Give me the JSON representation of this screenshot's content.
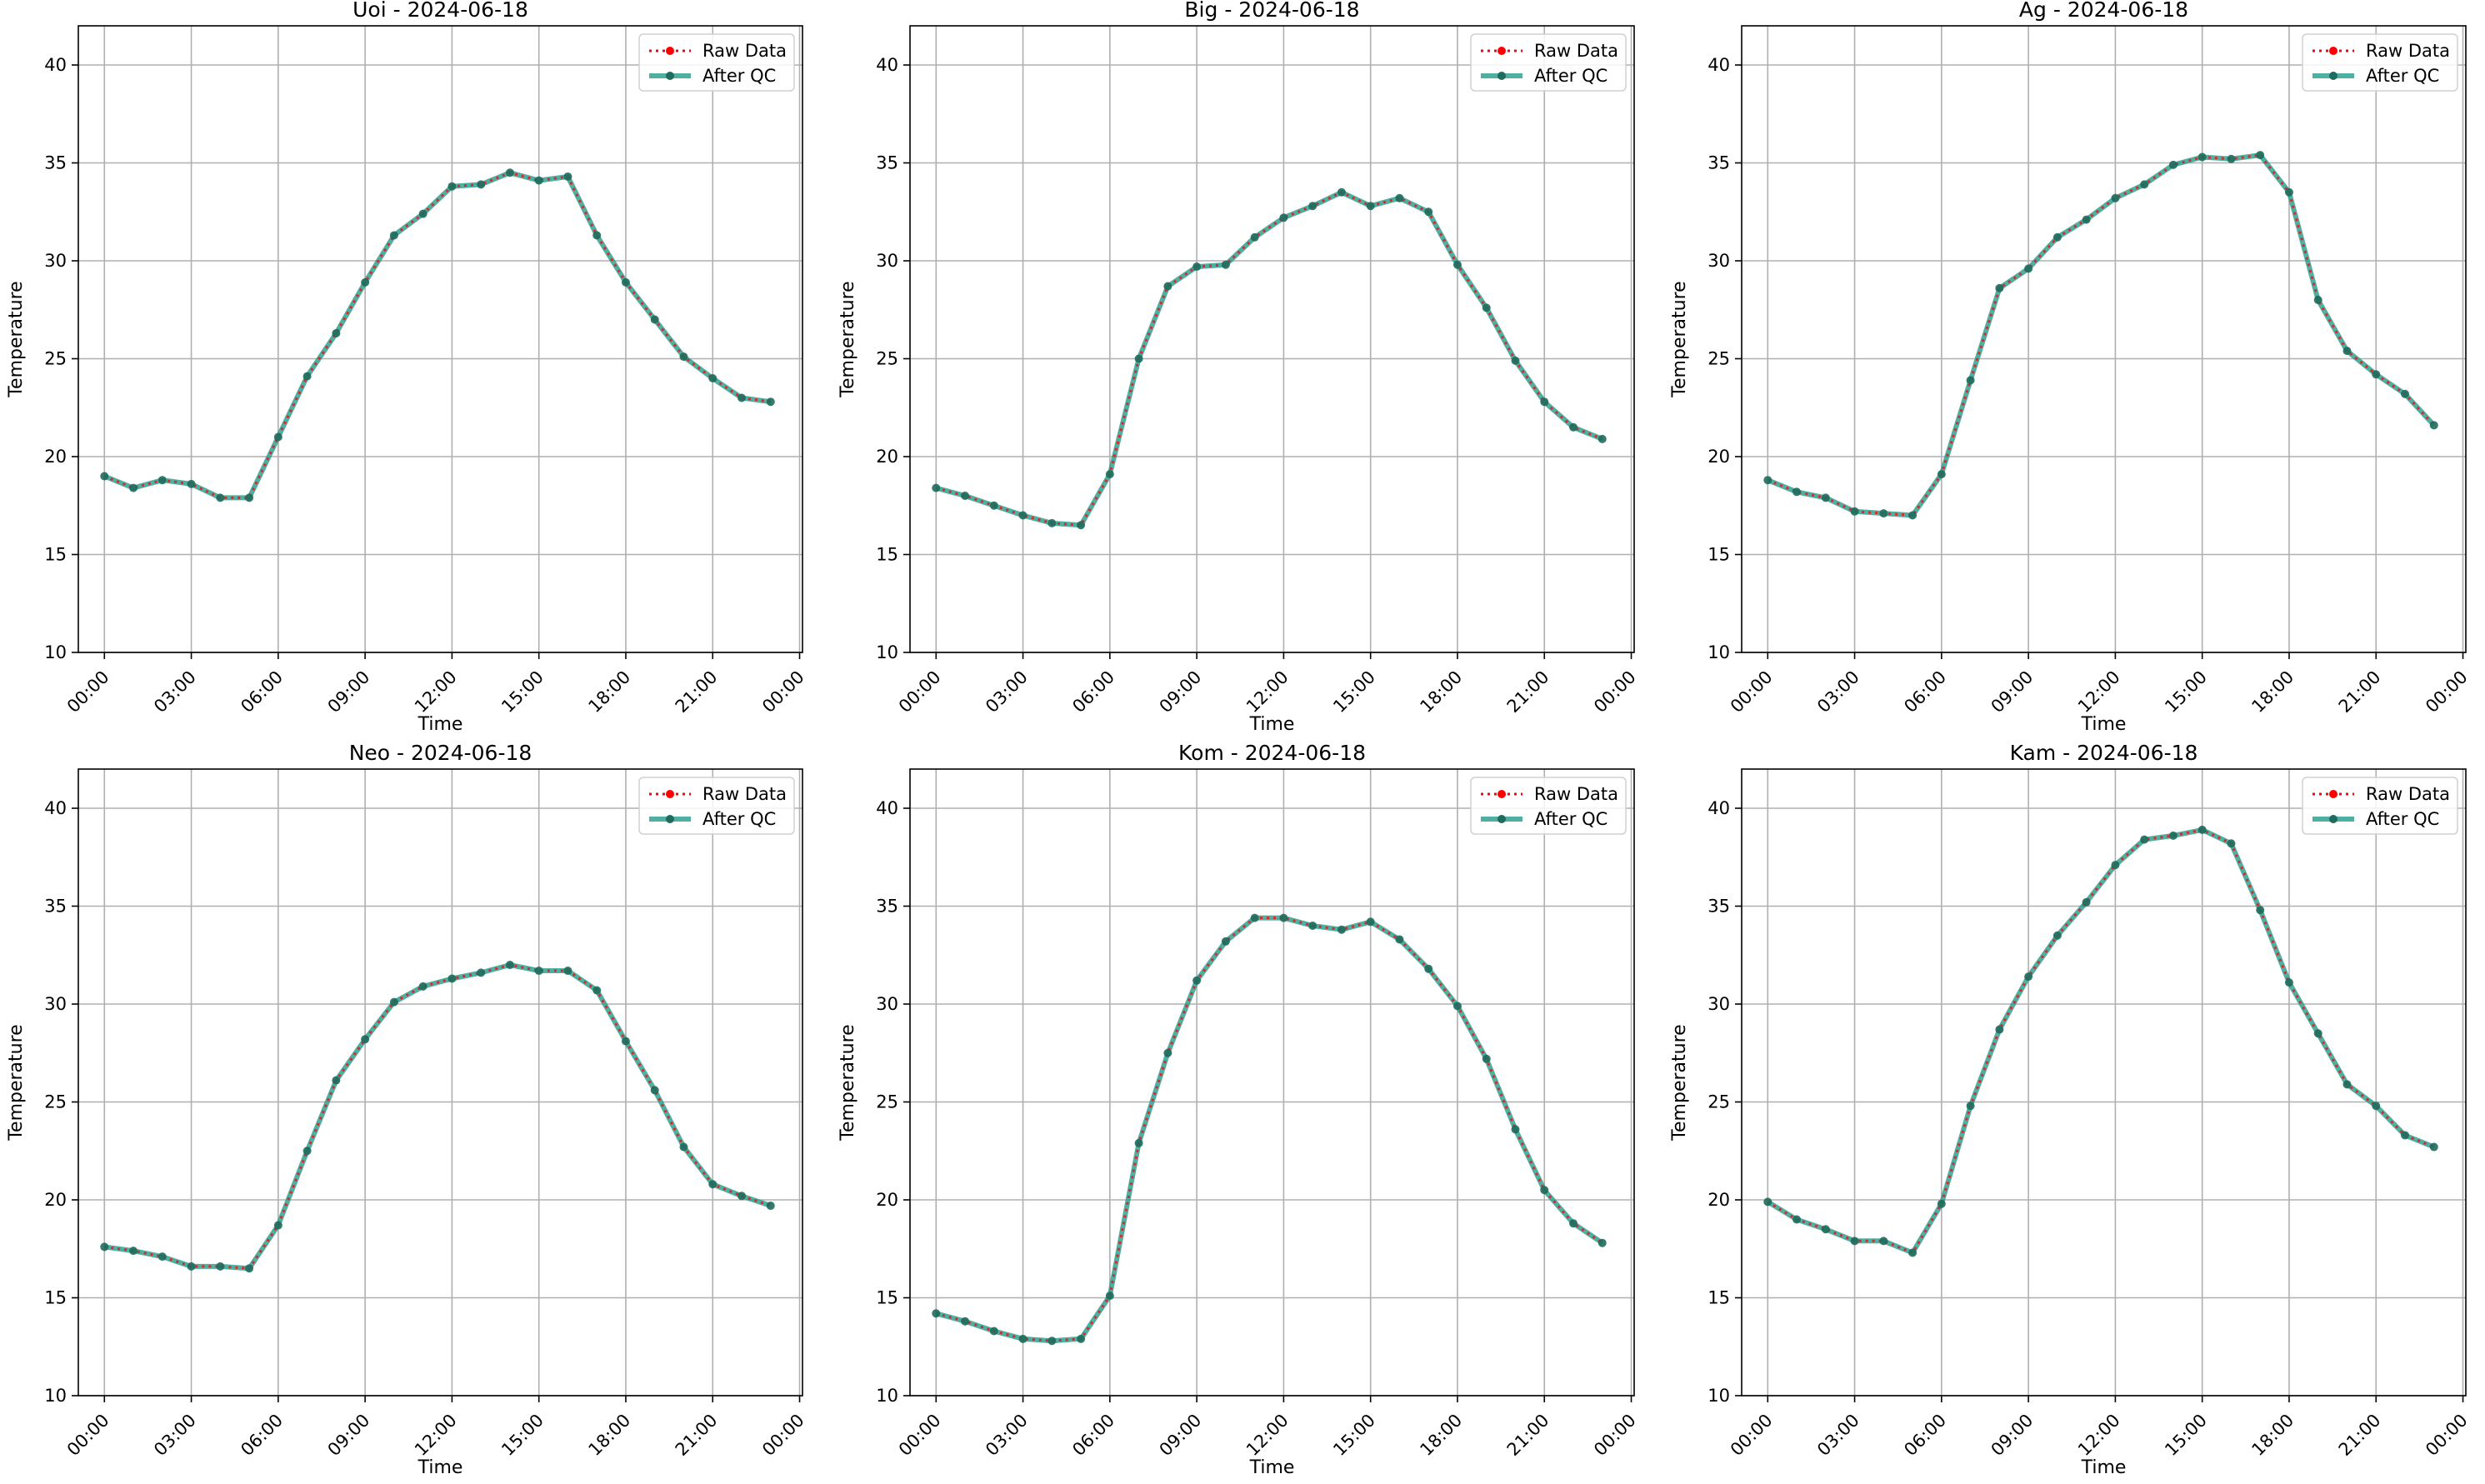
{
  "legend_labels": {
    "raw": "Raw Data",
    "qc": "After QC"
  },
  "colors": {
    "raw": "#ff0000",
    "qc": "#2a9d8f",
    "marker_dark": "#1f6b5c",
    "grid": "#b0b0b0",
    "axis": "#000000"
  },
  "chart_data": [
    {
      "type": "line",
      "title": "Uoi - 2024-06-18",
      "xlabel": "Time",
      "ylabel": "Temperature",
      "xlim_hours": [
        -0.9,
        24.1
      ],
      "ylim": [
        10,
        42
      ],
      "x_ticks": [
        "00:00",
        "03:00",
        "06:00",
        "09:00",
        "12:00",
        "15:00",
        "18:00",
        "21:00",
        "00:00"
      ],
      "y_ticks": [
        10,
        15,
        20,
        25,
        30,
        35,
        40
      ],
      "grid": true,
      "legend_position": "upper right",
      "x": [
        "00:00",
        "01:00",
        "02:00",
        "03:00",
        "04:00",
        "05:00",
        "06:00",
        "07:00",
        "08:00",
        "09:00",
        "10:00",
        "11:00",
        "12:00",
        "13:00",
        "14:00",
        "15:00",
        "16:00",
        "17:00",
        "18:00",
        "19:00",
        "20:00",
        "21:00",
        "22:00",
        "23:00"
      ],
      "series": [
        {
          "name": "Raw Data",
          "values": [
            19.0,
            18.4,
            18.8,
            18.6,
            17.9,
            17.9,
            21.0,
            24.1,
            26.3,
            28.9,
            31.3,
            32.4,
            33.8,
            33.9,
            34.5,
            34.1,
            34.3,
            31.3,
            28.9,
            27.0,
            25.1,
            24.0,
            23.0,
            22.8
          ]
        },
        {
          "name": "After QC",
          "values": [
            19.0,
            18.4,
            18.8,
            18.6,
            17.9,
            17.9,
            21.0,
            24.1,
            26.3,
            28.9,
            31.3,
            32.4,
            33.8,
            33.9,
            34.5,
            34.1,
            34.3,
            31.3,
            28.9,
            27.0,
            25.1,
            24.0,
            23.0,
            22.8
          ]
        }
      ]
    },
    {
      "type": "line",
      "title": "Big - 2024-06-18",
      "xlabel": "Time",
      "ylabel": "Temperature",
      "xlim_hours": [
        -0.9,
        24.1
      ],
      "ylim": [
        10,
        42
      ],
      "x_ticks": [
        "00:00",
        "03:00",
        "06:00",
        "09:00",
        "12:00",
        "15:00",
        "18:00",
        "21:00",
        "00:00"
      ],
      "y_ticks": [
        10,
        15,
        20,
        25,
        30,
        35,
        40
      ],
      "grid": true,
      "legend_position": "upper right",
      "x": [
        "00:00",
        "01:00",
        "02:00",
        "03:00",
        "04:00",
        "05:00",
        "06:00",
        "07:00",
        "08:00",
        "09:00",
        "10:00",
        "11:00",
        "12:00",
        "13:00",
        "14:00",
        "15:00",
        "16:00",
        "17:00",
        "18:00",
        "19:00",
        "20:00",
        "21:00",
        "22:00",
        "23:00"
      ],
      "series": [
        {
          "name": "Raw Data",
          "values": [
            18.4,
            18.0,
            17.5,
            17.0,
            16.6,
            16.5,
            19.1,
            25.0,
            28.7,
            29.7,
            29.8,
            31.2,
            32.2,
            32.8,
            33.5,
            32.8,
            33.2,
            32.5,
            29.8,
            27.6,
            24.9,
            22.8,
            21.5,
            20.9
          ]
        },
        {
          "name": "After QC",
          "values": [
            18.4,
            18.0,
            17.5,
            17.0,
            16.6,
            16.5,
            19.1,
            25.0,
            28.7,
            29.7,
            29.8,
            31.2,
            32.2,
            32.8,
            33.5,
            32.8,
            33.2,
            32.5,
            29.8,
            27.6,
            24.9,
            22.8,
            21.5,
            20.9
          ]
        }
      ]
    },
    {
      "type": "line",
      "title": "Ag - 2024-06-18",
      "xlabel": "Time",
      "ylabel": "Temperature",
      "xlim_hours": [
        -0.9,
        24.1
      ],
      "ylim": [
        10,
        42
      ],
      "x_ticks": [
        "00:00",
        "03:00",
        "06:00",
        "09:00",
        "12:00",
        "15:00",
        "18:00",
        "21:00",
        "00:00"
      ],
      "y_ticks": [
        10,
        15,
        20,
        25,
        30,
        35,
        40
      ],
      "grid": true,
      "legend_position": "upper right",
      "x": [
        "00:00",
        "01:00",
        "02:00",
        "03:00",
        "04:00",
        "05:00",
        "06:00",
        "07:00",
        "08:00",
        "09:00",
        "10:00",
        "11:00",
        "12:00",
        "13:00",
        "14:00",
        "15:00",
        "16:00",
        "17:00",
        "18:00",
        "19:00",
        "20:00",
        "21:00",
        "22:00",
        "23:00"
      ],
      "series": [
        {
          "name": "Raw Data",
          "values": [
            18.8,
            18.2,
            17.9,
            17.2,
            17.1,
            17.0,
            19.1,
            23.9,
            28.6,
            29.6,
            31.2,
            32.1,
            33.2,
            33.9,
            34.9,
            35.3,
            35.2,
            35.4,
            33.5,
            28.0,
            25.4,
            24.2,
            23.2,
            21.6
          ]
        },
        {
          "name": "After QC",
          "values": [
            18.8,
            18.2,
            17.9,
            17.2,
            17.1,
            17.0,
            19.1,
            23.9,
            28.6,
            29.6,
            31.2,
            32.1,
            33.2,
            33.9,
            34.9,
            35.3,
            35.2,
            35.4,
            33.5,
            28.0,
            25.4,
            24.2,
            23.2,
            21.6
          ]
        }
      ]
    },
    {
      "type": "line",
      "title": "Neo - 2024-06-18",
      "xlabel": "Time",
      "ylabel": "Temperature",
      "xlim_hours": [
        -0.9,
        24.1
      ],
      "ylim": [
        10,
        42
      ],
      "x_ticks": [
        "00:00",
        "03:00",
        "06:00",
        "09:00",
        "12:00",
        "15:00",
        "18:00",
        "21:00",
        "00:00"
      ],
      "y_ticks": [
        10,
        15,
        20,
        25,
        30,
        35,
        40
      ],
      "grid": true,
      "legend_position": "upper right",
      "x": [
        "00:00",
        "01:00",
        "02:00",
        "03:00",
        "04:00",
        "05:00",
        "06:00",
        "07:00",
        "08:00",
        "09:00",
        "10:00",
        "11:00",
        "12:00",
        "13:00",
        "14:00",
        "15:00",
        "16:00",
        "17:00",
        "18:00",
        "19:00",
        "20:00",
        "21:00",
        "22:00",
        "23:00"
      ],
      "series": [
        {
          "name": "Raw Data",
          "values": [
            17.6,
            17.4,
            17.1,
            16.6,
            16.6,
            16.5,
            18.7,
            22.5,
            26.1,
            28.2,
            30.1,
            30.9,
            31.3,
            31.6,
            32.0,
            31.7,
            31.7,
            30.7,
            28.1,
            25.6,
            22.7,
            20.8,
            20.2,
            19.7
          ]
        },
        {
          "name": "After QC",
          "values": [
            17.6,
            17.4,
            17.1,
            16.6,
            16.6,
            16.5,
            18.7,
            22.5,
            26.1,
            28.2,
            30.1,
            30.9,
            31.3,
            31.6,
            32.0,
            31.7,
            31.7,
            30.7,
            28.1,
            25.6,
            22.7,
            20.8,
            20.2,
            19.7
          ]
        }
      ]
    },
    {
      "type": "line",
      "title": "Kom - 2024-06-18",
      "xlabel": "Time",
      "ylabel": "Temperature",
      "xlim_hours": [
        -0.9,
        24.1
      ],
      "ylim": [
        10,
        42
      ],
      "x_ticks": [
        "00:00",
        "03:00",
        "06:00",
        "09:00",
        "12:00",
        "15:00",
        "18:00",
        "21:00",
        "00:00"
      ],
      "y_ticks": [
        10,
        15,
        20,
        25,
        30,
        35,
        40
      ],
      "grid": true,
      "legend_position": "upper right",
      "x": [
        "00:00",
        "01:00",
        "02:00",
        "03:00",
        "04:00",
        "05:00",
        "06:00",
        "07:00",
        "08:00",
        "09:00",
        "10:00",
        "11:00",
        "12:00",
        "13:00",
        "14:00",
        "15:00",
        "16:00",
        "17:00",
        "18:00",
        "19:00",
        "20:00",
        "21:00",
        "22:00",
        "23:00"
      ],
      "series": [
        {
          "name": "Raw Data",
          "values": [
            14.2,
            13.8,
            13.3,
            12.9,
            12.8,
            12.9,
            15.1,
            22.9,
            27.5,
            31.2,
            33.2,
            34.4,
            34.4,
            34.0,
            33.8,
            34.2,
            33.3,
            31.8,
            29.9,
            27.2,
            23.6,
            20.5,
            18.8,
            17.8
          ]
        },
        {
          "name": "After QC",
          "values": [
            14.2,
            13.8,
            13.3,
            12.9,
            12.8,
            12.9,
            15.1,
            22.9,
            27.5,
            31.2,
            33.2,
            34.4,
            34.4,
            34.0,
            33.8,
            34.2,
            33.3,
            31.8,
            29.9,
            27.2,
            23.6,
            20.5,
            18.8,
            17.8
          ]
        }
      ]
    },
    {
      "type": "line",
      "title": "Kam - 2024-06-18",
      "xlabel": "Time",
      "ylabel": "Temperature",
      "xlim_hours": [
        -0.9,
        24.1
      ],
      "ylim": [
        10,
        42
      ],
      "x_ticks": [
        "00:00",
        "03:00",
        "06:00",
        "09:00",
        "12:00",
        "15:00",
        "18:00",
        "21:00",
        "00:00"
      ],
      "y_ticks": [
        10,
        15,
        20,
        25,
        30,
        35,
        40
      ],
      "grid": true,
      "legend_position": "upper right",
      "x": [
        "00:00",
        "01:00",
        "02:00",
        "03:00",
        "04:00",
        "05:00",
        "06:00",
        "07:00",
        "08:00",
        "09:00",
        "10:00",
        "11:00",
        "12:00",
        "13:00",
        "14:00",
        "15:00",
        "16:00",
        "17:00",
        "18:00",
        "19:00",
        "20:00",
        "21:00",
        "22:00",
        "23:00"
      ],
      "series": [
        {
          "name": "Raw Data",
          "values": [
            19.9,
            19.0,
            18.5,
            17.9,
            17.9,
            17.3,
            19.8,
            24.8,
            28.7,
            31.4,
            33.5,
            35.2,
            37.1,
            38.4,
            38.6,
            38.9,
            38.2,
            34.8,
            31.1,
            28.5,
            25.9,
            24.8,
            23.3,
            22.7
          ]
        },
        {
          "name": "After QC",
          "values": [
            19.9,
            19.0,
            18.5,
            17.9,
            17.9,
            17.3,
            19.8,
            24.8,
            28.7,
            31.4,
            33.5,
            35.2,
            37.1,
            38.4,
            38.6,
            38.9,
            38.2,
            34.8,
            31.1,
            28.5,
            25.9,
            24.8,
            23.3,
            22.7
          ]
        }
      ]
    }
  ]
}
